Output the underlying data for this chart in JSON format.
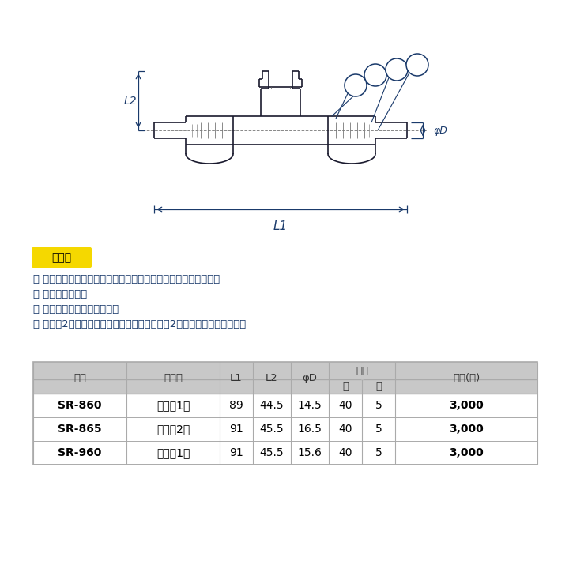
{
  "bg_color": "#ffffff",
  "note_label": "注　意",
  "note_bg": "#f5d800",
  "note_fg": "#000000",
  "notes": [
    "・ ご使用の際はポリエチレン管の仕様をメーカーにご確認の上、",
    "　 お使い下さい。",
    "・ 埋設には使用できません。",
    "・ 水道用2種用の製品のナットには、識別用に2本の溝がついています。"
  ],
  "text_color": "#1a3a6b",
  "table_header_bg": "#c8c8c8",
  "table_header_fg": "#333333",
  "table_row_bg": "#ffffff",
  "table_row_fg": "#000000",
  "table_border_color": "#aaaaaa",
  "col_headers": [
    "品番",
    "適合管",
    "L1",
    "L2",
    "φD",
    "入数",
    "",
    "価格(円)"
  ],
  "sub_headers": [
    "大",
    "小"
  ],
  "rows": [
    [
      "SR-860",
      "水道用1種",
      "89",
      "44.5",
      "14.5",
      "40",
      "5",
      "3,000"
    ],
    [
      "SR-865",
      "水道用2種",
      "91",
      "45.5",
      "16.5",
      "40",
      "5",
      "3,000"
    ],
    [
      "SR-960",
      "一般用1種",
      "91",
      "45.5",
      "15.6",
      "40",
      "5",
      "3,000"
    ]
  ],
  "diagram_color": "#1a1a2e",
  "dim_color": "#1a3a6b",
  "callout_color": "#1a3a6b"
}
